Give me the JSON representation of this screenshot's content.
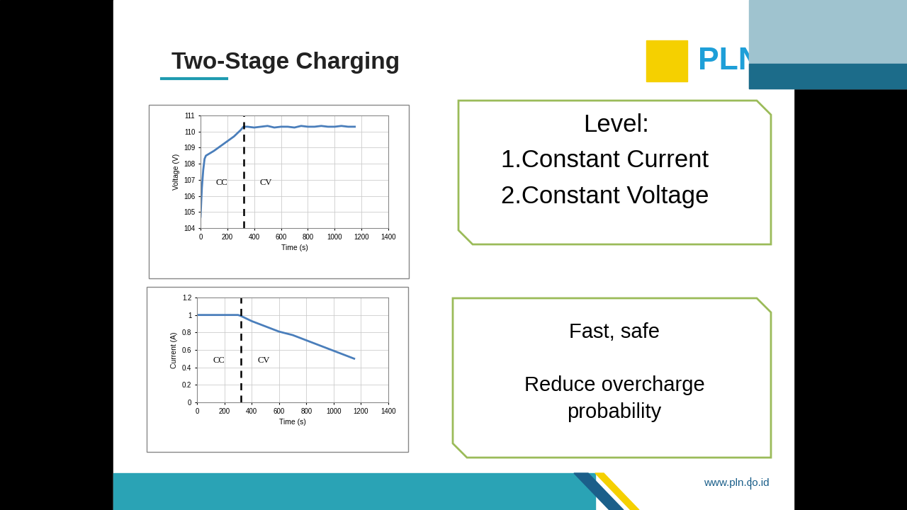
{
  "slide": {
    "title": "Two-Stage Charging",
    "logo": "PLN",
    "footer": "www.pln.co.id",
    "boxes": [
      {
        "lines": [
          "Level:",
          "1.Constant Current",
          "2.Constant Voltage"
        ]
      },
      {
        "lines": [
          "Fast, safe",
          "Reduce overcharge\nprobability"
        ]
      }
    ]
  },
  "chart_data": [
    {
      "type": "line",
      "xlabel": "Time (s)",
      "ylabel": "Voltage (V)",
      "color": "#4a7ebb",
      "x": [
        0,
        10,
        20,
        30,
        40,
        60,
        80,
        100,
        150,
        200,
        250,
        300,
        320,
        350,
        400,
        450,
        500,
        550,
        600,
        650,
        700,
        750,
        800,
        850,
        900,
        950,
        1000,
        1050,
        1100,
        1150
      ],
      "values": [
        104.7,
        106.5,
        107.6,
        108.3,
        108.5,
        108.6,
        108.7,
        108.8,
        109.1,
        109.4,
        109.7,
        110.1,
        110.3,
        110.3,
        110.25,
        110.3,
        110.35,
        110.25,
        110.3,
        110.3,
        110.25,
        110.35,
        110.3,
        110.3,
        110.35,
        110.3,
        110.3,
        110.35,
        110.3,
        110.3
      ],
      "xlim": [
        0,
        1400
      ],
      "xticks": [
        0,
        200,
        400,
        600,
        800,
        1000,
        1200,
        1400
      ],
      "ylim": [
        104,
        111
      ],
      "yticks": [
        104,
        105,
        106,
        107,
        108,
        109,
        110,
        111
      ],
      "grid": true,
      "transition_time": 320,
      "annotations": [
        "CC",
        "CV"
      ]
    },
    {
      "type": "line",
      "xlabel": "Time (s)",
      "ylabel": "Current (A)",
      "color": "#4a7ebb",
      "x": [
        0,
        100,
        200,
        300,
        320,
        400,
        500,
        600,
        700,
        800,
        900,
        1000,
        1100,
        1150
      ],
      "values": [
        1.0,
        1.0,
        1.0,
        1.0,
        0.99,
        0.93,
        0.87,
        0.81,
        0.77,
        0.71,
        0.65,
        0.59,
        0.53,
        0.5
      ],
      "xlim": [
        0,
        1400
      ],
      "xticks": [
        0,
        200,
        400,
        600,
        800,
        1000,
        1200,
        1400
      ],
      "ylim": [
        0,
        1.2
      ],
      "yticks": [
        0,
        0.2,
        0.4,
        0.6,
        0.8,
        1,
        1.2
      ],
      "grid": true,
      "transition_time": 320,
      "annotations": [
        "CC",
        "CV"
      ]
    }
  ]
}
